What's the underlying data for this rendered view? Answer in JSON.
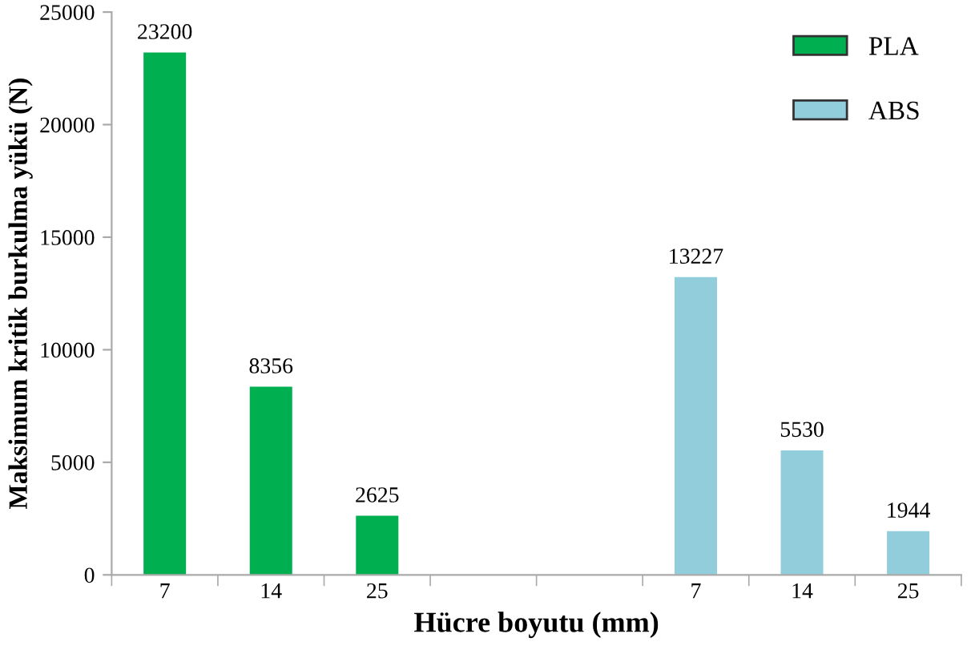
{
  "chart_data": {
    "type": "bar",
    "xlabel": "Hücre boyutu (mm)",
    "ylabel": "Maksimum kritik burkulma yükü (N)",
    "categories": [
      "7",
      "14",
      "25",
      null,
      null,
      "7",
      "14",
      "25"
    ],
    "series": [
      {
        "name": "PLA",
        "color": "#00b050",
        "values": [
          23200,
          8356,
          2625,
          null,
          null,
          null,
          null,
          null
        ]
      },
      {
        "name": "ABS",
        "color": "#92cddc",
        "values": [
          null,
          null,
          null,
          null,
          null,
          13227,
          5530,
          1944
        ]
      }
    ],
    "ylim": [
      0,
      25000
    ],
    "yticks": [
      0,
      5000,
      10000,
      15000,
      20000,
      25000
    ],
    "data_labels": true,
    "grid": false,
    "legend": "top right"
  }
}
